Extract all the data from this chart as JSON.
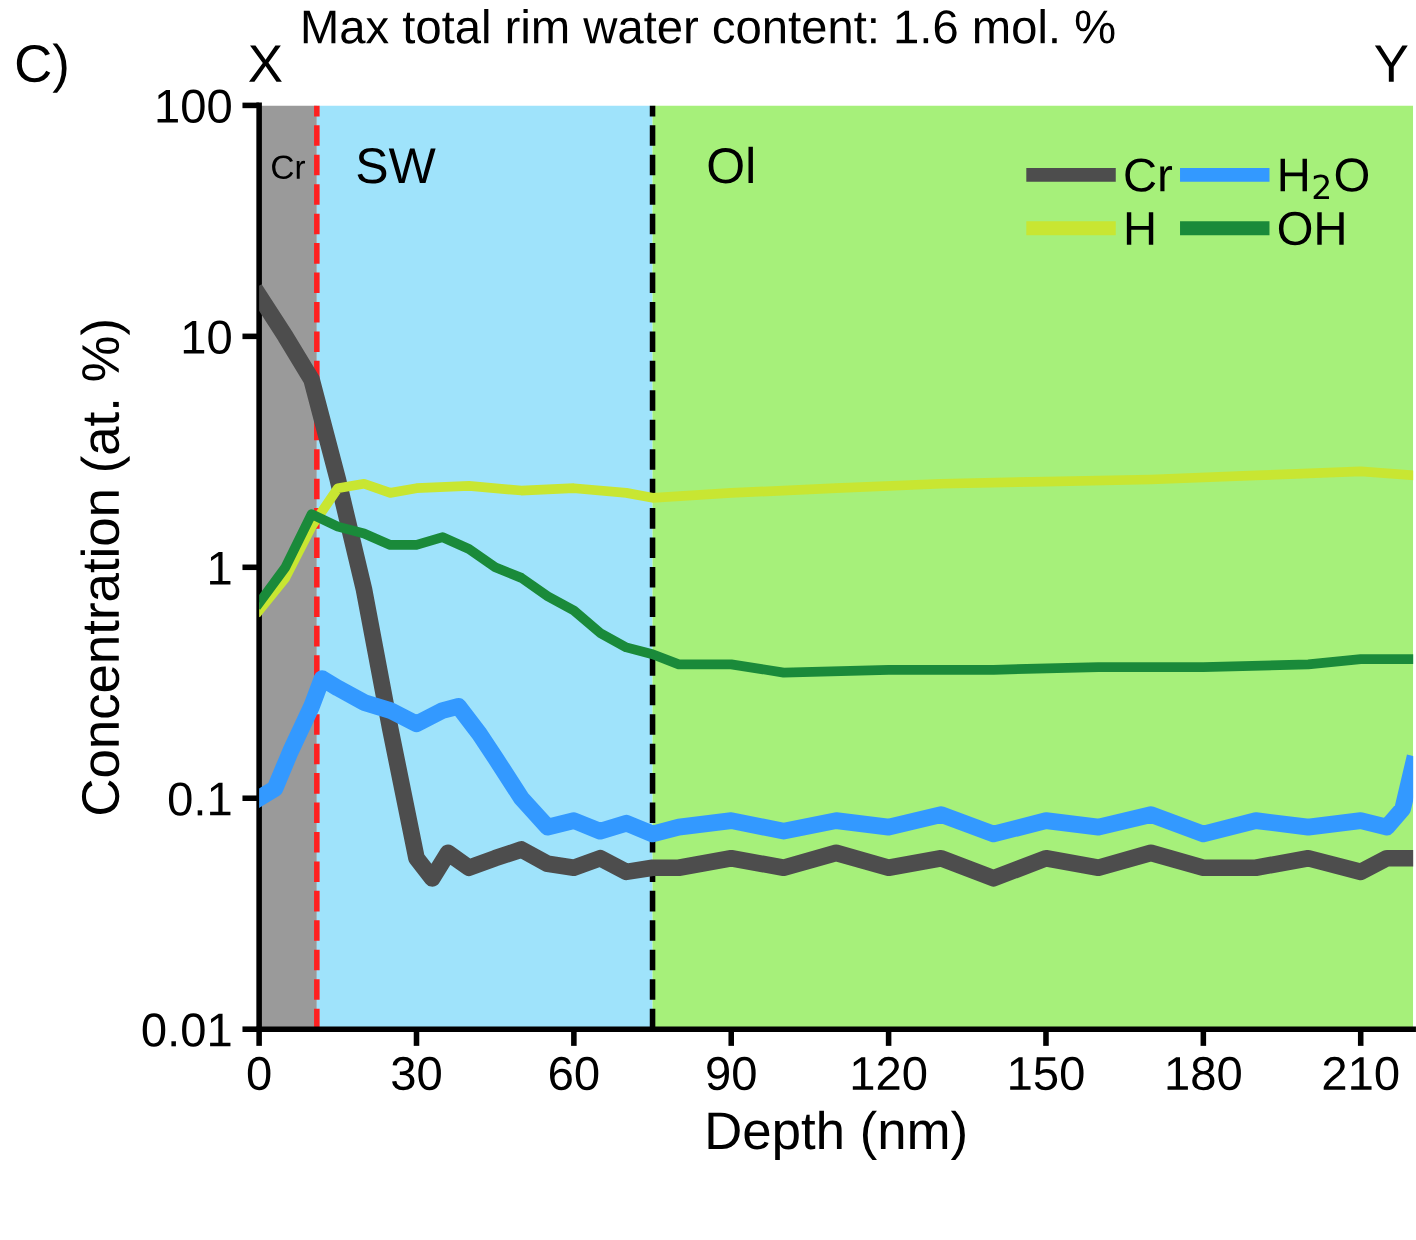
{
  "chart_data": {
    "type": "line",
    "title": "Max total rim water content: 1.6 mol. %",
    "xlabel": "Depth (nm)",
    "ylabel": "Concentration (at. %)",
    "annotations": [
      "C)",
      "X",
      "Y"
    ],
    "xlim": [
      0,
      220
    ],
    "xticks": [
      0,
      30,
      60,
      90,
      120,
      150,
      180,
      210
    ],
    "ylim": [
      0.01,
      100
    ],
    "yticks": [
      0.01,
      0.1,
      1,
      10,
      100
    ],
    "log": true,
    "grid": false,
    "legend": "top right",
    "line_style": "solid",
    "marker": "none",
    "bands": [
      {
        "axis": "x",
        "from": 0,
        "to": 11,
        "label": "Cr",
        "color": "#9a9a9a"
      },
      {
        "axis": "x",
        "from": 11,
        "to": 75,
        "label": "SW",
        "color": "#9fe3fb"
      },
      {
        "axis": "x",
        "from": 75,
        "to": 220,
        "label": "Ol",
        "color": "#a6f07a"
      }
    ],
    "ref_lines": [
      {
        "axis": "x",
        "value": 11,
        "color": "#ff2020",
        "line_style": "dashed"
      },
      {
        "axis": "x",
        "value": 75,
        "color": "#000000",
        "line_style": "dashed"
      }
    ],
    "series": [
      {
        "name": "Cr",
        "color": "#4d4d4d",
        "x": [
          0,
          5,
          10,
          15,
          20,
          25,
          30,
          33,
          36,
          40,
          45,
          50,
          55,
          60,
          65,
          70,
          75,
          80,
          90,
          100,
          110,
          120,
          130,
          140,
          150,
          160,
          170,
          180,
          190,
          200,
          210,
          215,
          220
        ],
        "values": [
          15,
          10,
          6.5,
          2.4,
          0.8,
          0.2,
          0.055,
          0.045,
          0.058,
          0.05,
          0.055,
          0.06,
          0.052,
          0.05,
          0.055,
          0.048,
          0.05,
          0.05,
          0.055,
          0.05,
          0.058,
          0.05,
          0.055,
          0.045,
          0.055,
          0.05,
          0.058,
          0.05,
          0.05,
          0.055,
          0.048,
          0.055,
          0.055
        ]
      },
      {
        "name": "H$_{2}$O",
        "color": "#3399ff",
        "x": [
          0,
          3,
          6,
          10,
          12,
          15,
          20,
          25,
          30,
          35,
          38,
          42,
          45,
          50,
          55,
          60,
          65,
          70,
          75,
          80,
          90,
          100,
          110,
          120,
          130,
          140,
          150,
          160,
          170,
          180,
          190,
          200,
          210,
          215,
          218,
          220
        ],
        "values": [
          0.1,
          0.11,
          0.16,
          0.25,
          0.33,
          0.3,
          0.26,
          0.24,
          0.21,
          0.24,
          0.25,
          0.19,
          0.15,
          0.1,
          0.075,
          0.08,
          0.072,
          0.078,
          0.07,
          0.075,
          0.08,
          0.072,
          0.08,
          0.075,
          0.085,
          0.07,
          0.08,
          0.075,
          0.085,
          0.07,
          0.08,
          0.075,
          0.08,
          0.075,
          0.09,
          0.14
        ]
      },
      {
        "name": "H",
        "color": "#c8e632",
        "x": [
          0,
          5,
          10,
          15,
          20,
          25,
          30,
          40,
          50,
          60,
          70,
          75,
          90,
          110,
          130,
          150,
          170,
          190,
          210,
          220
        ],
        "values": [
          0.65,
          0.9,
          1.5,
          2.2,
          2.3,
          2.1,
          2.2,
          2.25,
          2.15,
          2.2,
          2.1,
          2.0,
          2.1,
          2.2,
          2.3,
          2.35,
          2.4,
          2.5,
          2.6,
          2.5
        ]
      },
      {
        "name": "OH",
        "color": "#1a8a3a",
        "x": [
          0,
          5,
          10,
          15,
          20,
          25,
          30,
          35,
          40,
          45,
          50,
          55,
          60,
          65,
          70,
          75,
          80,
          90,
          100,
          120,
          140,
          160,
          180,
          200,
          210,
          220
        ],
        "values": [
          0.7,
          1.0,
          1.7,
          1.5,
          1.4,
          1.25,
          1.25,
          1.35,
          1.2,
          1.0,
          0.9,
          0.75,
          0.65,
          0.52,
          0.45,
          0.42,
          0.38,
          0.38,
          0.35,
          0.36,
          0.36,
          0.37,
          0.37,
          0.38,
          0.4,
          0.4
        ]
      }
    ]
  }
}
